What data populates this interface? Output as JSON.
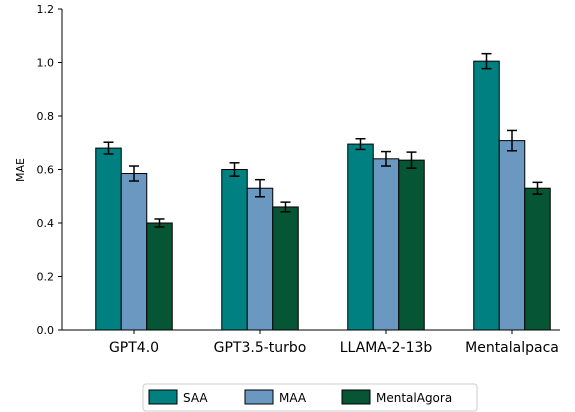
{
  "chart_data": {
    "type": "bar",
    "ylabel": "MAE",
    "xlabel": "",
    "title": "",
    "ylim": [
      0,
      1.2
    ],
    "yticks": [
      "0.0",
      "0.2",
      "0.4",
      "0.6",
      "0.8",
      "1.0",
      "1.2"
    ],
    "categories": [
      "GPT4.0",
      "GPT3.5-turbo",
      "LLAMA-2-13b",
      "Mentalalpaca"
    ],
    "series": [
      {
        "name": "SAA",
        "color": "#008080",
        "values": [
          0.68,
          0.6,
          0.695,
          1.005
        ],
        "errors": [
          0.022,
          0.025,
          0.02,
          0.028
        ]
      },
      {
        "name": "MAA",
        "color": "#6a98c0",
        "values": [
          0.585,
          0.53,
          0.64,
          0.708
        ],
        "errors": [
          0.028,
          0.032,
          0.027,
          0.038
        ]
      },
      {
        "name": "MentalAgora",
        "color": "#065535",
        "values": [
          0.4,
          0.46,
          0.635,
          0.53
        ],
        "errors": [
          0.015,
          0.018,
          0.03,
          0.022
        ]
      }
    ],
    "legend_position": "bottom-center",
    "grid": false
  }
}
